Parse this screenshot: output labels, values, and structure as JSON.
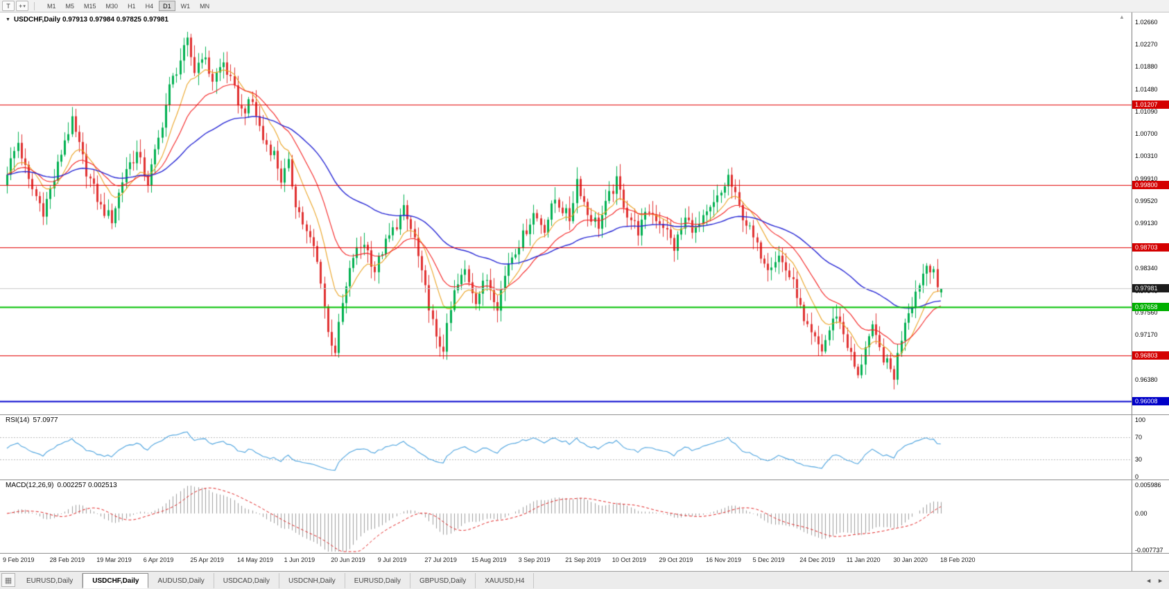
{
  "icons": {
    "dropdown": "▾",
    "one_click": "▼",
    "crosshair": "+",
    "tabs_grid": "▦",
    "scroll_left": "◄",
    "scroll_right": "►",
    "shift_marker": "▲"
  },
  "toolbar": {
    "tool_button": "T",
    "timeframes": [
      "M1",
      "M5",
      "M15",
      "M30",
      "H1",
      "H4",
      "D1",
      "W1",
      "MN"
    ],
    "active_timeframe": "D1"
  },
  "chart": {
    "title_text": "USDCHF,Daily 0.97913 0.97984 0.97825 0.97981"
  },
  "chart_data": {
    "type": "candlestick",
    "symbol": "USDCHF",
    "timeframe": "Daily",
    "current_bar": {
      "open": 0.97913,
      "high": 0.97984,
      "low": 0.97825,
      "close": 0.97981
    },
    "bars": 260,
    "noise": 0.0011,
    "colors": {
      "up": "#00b050",
      "down": "#e03131",
      "ma_fast": "#eaa221",
      "ma_mid": "#f42020",
      "ma_slow": "#2626d4",
      "rsi": "#4aa2de",
      "rsi_levels": "#b8b8b8",
      "macd_hist": "#9c9c9c",
      "macd_signal": "#e02020",
      "bid_line": "#c8c8c8"
    },
    "y_ticks": [
      "1.02660",
      "1.02270",
      "1.01880",
      "1.01480",
      "1.01090",
      "1.00700",
      "1.00310",
      "0.99910",
      "0.99520",
      "0.99130",
      "0.98730",
      "0.98340",
      "0.97940",
      "0.97560",
      "0.97170",
      "0.96780",
      "0.96380",
      "0.95990"
    ],
    "x_labels": [
      "9 Feb 2019",
      "28 Feb 2019",
      "19 Mar 2019",
      "6 Apr 2019",
      "25 Apr 2019",
      "14 May 2019",
      "1 Jun 2019",
      "20 Jun 2019",
      "9 Jul 2019",
      "27 Jul 2019",
      "15 Aug 2019",
      "3 Sep 2019",
      "21 Sep 2019",
      "10 Oct 2019",
      "29 Oct 2019",
      "16 Nov 2019",
      "5 Dec 2019",
      "24 Dec 2019",
      "11 Jan 2020",
      "30 Jan 2020",
      "18 Feb 2020"
    ],
    "levels": [
      {
        "price": 1.01207,
        "label": "1.01207",
        "line_color": "#e00000",
        "label_bg": "#d40000",
        "width": 1
      },
      {
        "price": 0.998,
        "label": "0.99800",
        "line_color": "#e00000",
        "label_bg": "#d40000",
        "width": 1
      },
      {
        "price": 0.98703,
        "label": "0.98703",
        "line_color": "#e00000",
        "label_bg": "#d40000",
        "width": 1
      },
      {
        "price": 0.97981,
        "label": "0.97981",
        "line_color": "#c8c8c8",
        "label_bg": "#1c1c1c",
        "width": 1
      },
      {
        "price": 0.97658,
        "label": "0.97658",
        "line_color": "#00c000",
        "label_bg": "#00b000",
        "width": 2
      },
      {
        "price": 0.96803,
        "label": "0.96803",
        "line_color": "#e00000",
        "label_bg": "#d40000",
        "width": 1
      },
      {
        "price": 0.96008,
        "label": "0.96008",
        "line_color": "#0000cd",
        "label_bg": "#0000c8",
        "width": 2
      }
    ],
    "close_anchors": [
      [
        0,
        1.0005
      ],
      [
        3,
        1.0055
      ],
      [
        6,
        0.9985
      ],
      [
        10,
        0.9935
      ],
      [
        13,
        0.999
      ],
      [
        16,
        1.006
      ],
      [
        18,
        1.009
      ],
      [
        22,
        1.0005
      ],
      [
        26,
        0.994
      ],
      [
        29,
        0.992
      ],
      [
        33,
        1.001
      ],
      [
        36,
        1.0035
      ],
      [
        39,
        0.9985
      ],
      [
        42,
        1.006
      ],
      [
        45,
        1.015
      ],
      [
        48,
        1.02
      ],
      [
        50,
        1.023
      ],
      [
        52,
        1.018
      ],
      [
        54,
        1.021
      ],
      [
        57,
        1.0165
      ],
      [
        60,
        1.0195
      ],
      [
        63,
        1.0145
      ],
      [
        65,
        1.011
      ],
      [
        68,
        1.0125
      ],
      [
        71,
        1.006
      ],
      [
        74,
        1.0035
      ],
      [
        76,
        0.999
      ],
      [
        78,
        1.0015
      ],
      [
        80,
        0.995
      ],
      [
        83,
        0.9895
      ],
      [
        85,
        0.987
      ],
      [
        87,
        0.9815
      ],
      [
        89,
        0.972
      ],
      [
        91,
        0.969
      ],
      [
        93,
        0.977
      ],
      [
        96,
        0.9855
      ],
      [
        99,
        0.988
      ],
      [
        102,
        0.983
      ],
      [
        104,
        0.9865
      ],
      [
        107,
        0.99
      ],
      [
        110,
        0.9935
      ],
      [
        113,
        0.9885
      ],
      [
        115,
        0.982
      ],
      [
        117,
        0.977
      ],
      [
        119,
        0.9705
      ],
      [
        121,
        0.9695
      ],
      [
        124,
        0.979
      ],
      [
        127,
        0.983
      ],
      [
        130,
        0.978
      ],
      [
        133,
        0.9815
      ],
      [
        136,
        0.977
      ],
      [
        139,
        0.9845
      ],
      [
        143,
        0.989
      ],
      [
        146,
        0.993
      ],
      [
        149,
        0.9905
      ],
      [
        152,
        0.9955
      ],
      [
        156,
        0.992
      ],
      [
        158,
        0.999
      ],
      [
        161,
        0.993
      ],
      [
        164,
        0.991
      ],
      [
        167,
        0.996
      ],
      [
        169,
        0.9985
      ],
      [
        172,
        0.993
      ],
      [
        175,
        0.99
      ],
      [
        178,
        0.9935
      ],
      [
        182,
        0.991
      ],
      [
        185,
        0.987
      ],
      [
        188,
        0.992
      ],
      [
        191,
        0.99
      ],
      [
        195,
        0.9935
      ],
      [
        198,
        0.9965
      ],
      [
        200,
        0.9995
      ],
      [
        203,
        0.994
      ],
      [
        206,
        0.99
      ],
      [
        208,
        0.987
      ],
      [
        211,
        0.984
      ],
      [
        214,
        0.9855
      ],
      [
        217,
        0.982
      ],
      [
        219,
        0.979
      ],
      [
        221,
        0.9735
      ],
      [
        223,
        0.9715
      ],
      [
        226,
        0.969
      ],
      [
        228,
        0.9725
      ],
      [
        230,
        0.9755
      ],
      [
        232,
        0.972
      ],
      [
        234,
        0.968
      ],
      [
        236,
        0.964
      ],
      [
        238,
        0.97
      ],
      [
        240,
        0.9725
      ],
      [
        242,
        0.969
      ],
      [
        244,
        0.9665
      ],
      [
        246,
        0.9645
      ],
      [
        247,
        0.968
      ],
      [
        249,
        0.9745
      ],
      [
        251,
        0.9775
      ],
      [
        253,
        0.981
      ],
      [
        255,
        0.984
      ],
      [
        257,
        0.9835
      ],
      [
        258,
        0.979
      ],
      [
        259,
        0.97981
      ]
    ],
    "indicators": {
      "moving_averages": [
        {
          "period": 10,
          "color": "#eaa221"
        },
        {
          "period": 21,
          "color": "#f42020"
        },
        {
          "period": 55,
          "color": "#2626d4"
        }
      ],
      "rsi": {
        "label": "RSI(14)",
        "value": "57.0977",
        "scale": [
          "100",
          "70",
          "30",
          "0"
        ],
        "levels": [
          70,
          30
        ]
      },
      "macd": {
        "label": "MACD(12,26,9)",
        "value": "0.002257 0.002513",
        "scale": [
          "0.005986",
          "0.00",
          "-0.007737"
        ]
      }
    }
  },
  "tabs": {
    "items": [
      "EURUSD,Daily",
      "USDCHF,Daily",
      "AUDUSD,Daily",
      "USDCAD,Daily",
      "USDCNH,Daily",
      "EURUSD,Daily",
      "GBPUSD,Daily",
      "XAUUSD,H4"
    ],
    "active_index": 1
  }
}
